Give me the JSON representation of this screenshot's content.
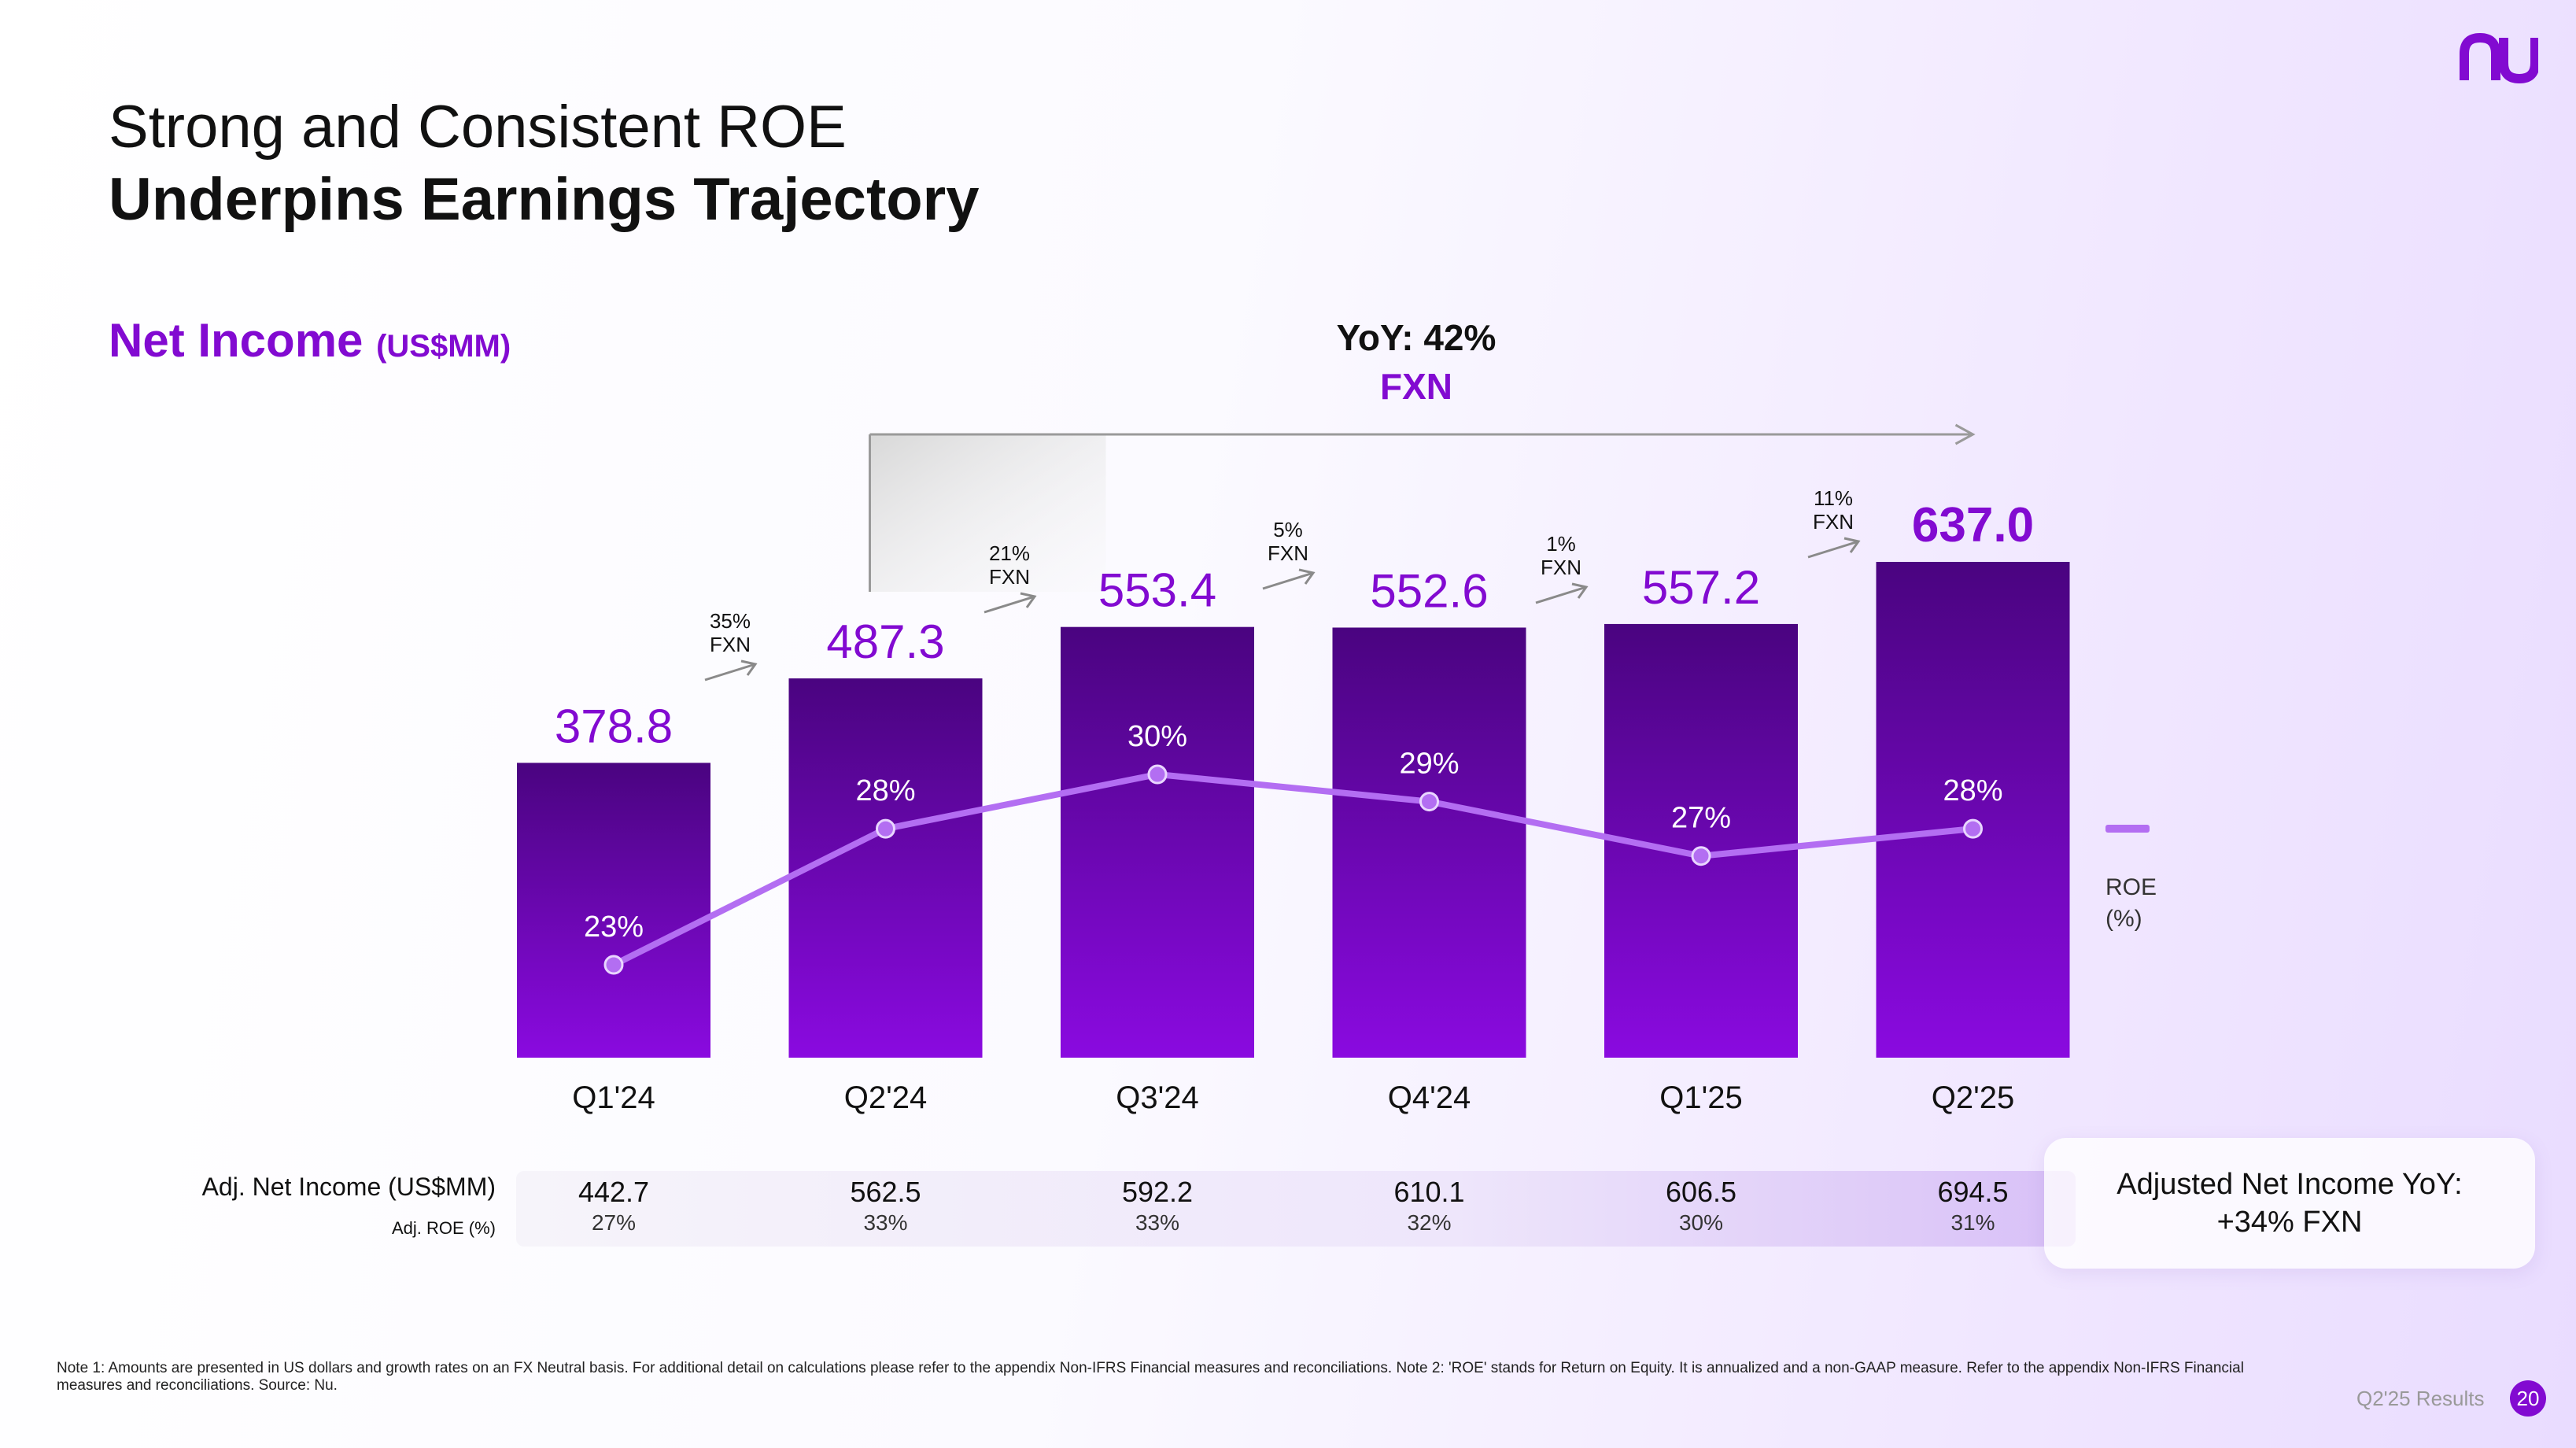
{
  "title": {
    "line1": "Strong and Consistent ROE",
    "line2": "Underpins Earnings Trajectory"
  },
  "section": {
    "label": "Net Income",
    "unit": "(US$MM)"
  },
  "brand": {
    "logo_text": "nu",
    "accent": "#820ad1"
  },
  "yoy": {
    "label": "YoY: 42%",
    "fxn": "FXN"
  },
  "legend": {
    "roe_line1": "ROE",
    "roe_line2": "(%)"
  },
  "chart_data": {
    "type": "bar",
    "title": "Net Income (US$MM)",
    "categories": [
      "Q1'24",
      "Q2'24",
      "Q3'24",
      "Q4'24",
      "Q1'25",
      "Q2'25"
    ],
    "series": [
      {
        "name": "Net Income (US$MM)",
        "type": "bar",
        "values": [
          378.8,
          487.3,
          553.4,
          552.6,
          557.2,
          637.0
        ],
        "labels": [
          "378.8",
          "487.3",
          "553.4",
          "552.6",
          "557.2",
          "637.0"
        ]
      },
      {
        "name": "ROE (%)",
        "type": "line",
        "values": [
          23,
          28,
          30,
          29,
          27,
          28
        ],
        "labels": [
          "23%",
          "28%",
          "30%",
          "29%",
          "27%",
          "28%"
        ]
      }
    ],
    "growth_annotations": [
      {
        "between": [
          "Q1'24",
          "Q2'24"
        ],
        "line1": "35%",
        "line2": "FXN"
      },
      {
        "between": [
          "Q2'24",
          "Q3'24"
        ],
        "line1": "21%",
        "line2": "FXN"
      },
      {
        "between": [
          "Q3'24",
          "Q4'24"
        ],
        "line1": "5%",
        "line2": "FXN"
      },
      {
        "between": [
          "Q4'24",
          "Q1'25"
        ],
        "line1": "1%",
        "line2": "FXN"
      },
      {
        "between": [
          "Q1'25",
          "Q2'25"
        ],
        "line1": "11%",
        "line2": "FXN"
      }
    ],
    "ylim": [
      0,
      700
    ],
    "roe_ylim": [
      0,
      45
    ],
    "colors": {
      "bar_top": "#4a0480",
      "bar_bottom": "#8a0ae0",
      "line": "#b36ef2",
      "value_text": "#820ad1"
    }
  },
  "adjusted": {
    "net_income_label": "Adj. Net Income (US$MM)",
    "roe_label": "Adj. ROE (%)",
    "net_income": [
      "442.7",
      "562.5",
      "592.2",
      "610.1",
      "606.5",
      "694.5"
    ],
    "roe": [
      "27%",
      "33%",
      "33%",
      "32%",
      "30%",
      "31%"
    ]
  },
  "callout": {
    "line1": "Adjusted Net Income YoY:",
    "line2": "+34% FXN"
  },
  "note": "Note 1: Amounts are presented in US dollars and growth rates on an FX Neutral basis. For additional detail on calculations please refer to the appendix Non-IFRS Financial measures and reconciliations. Note 2: 'ROE' stands for Return on Equity. It is annualized and a non-GAAP measure. Refer to the appendix Non-IFRS Financial measures and reconciliations. Source: Nu.",
  "footer": {
    "label": "Q2'25 Results",
    "page": "20"
  }
}
